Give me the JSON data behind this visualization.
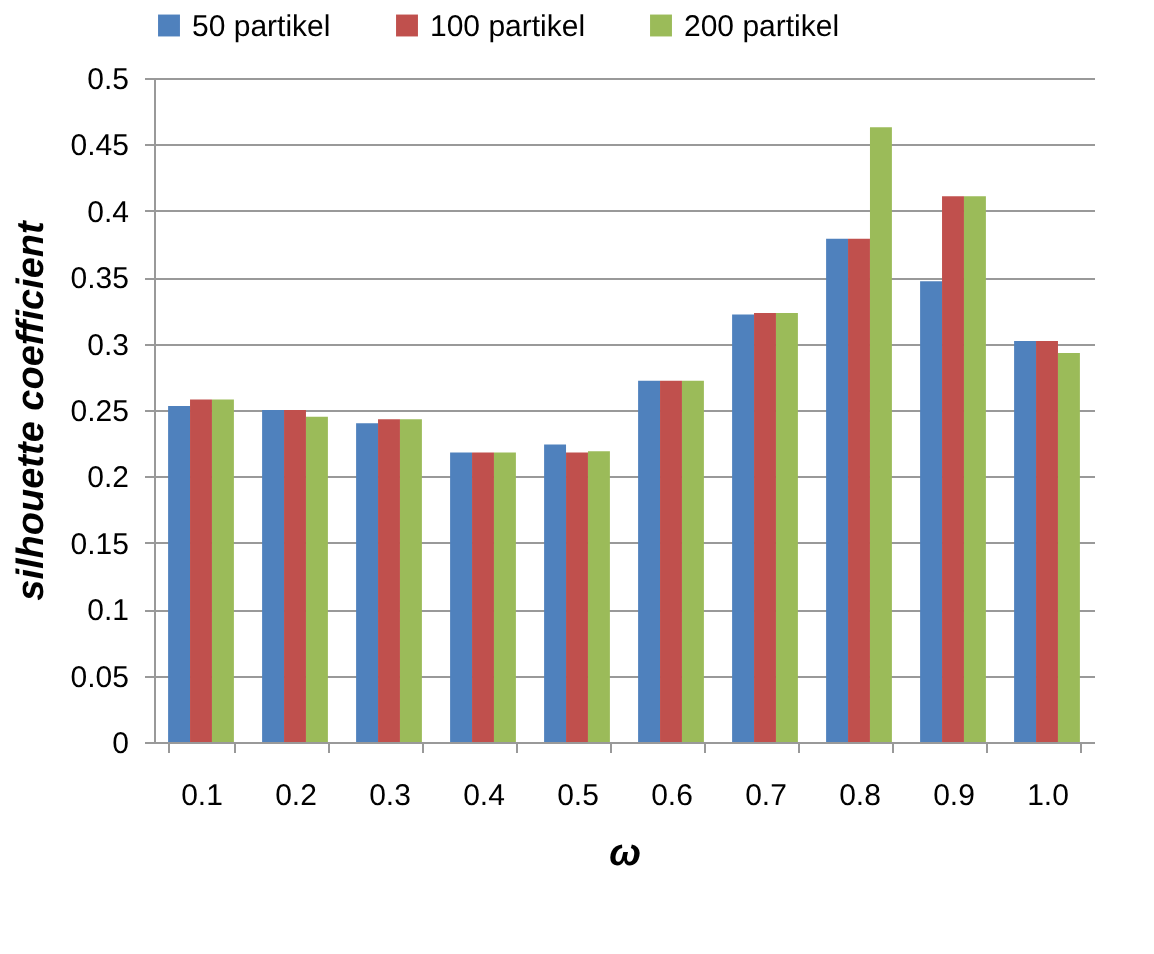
{
  "chart_data": {
    "type": "bar",
    "xlabel": "ω",
    "ylabel": "silhouette coefficient",
    "categories": [
      "0.1",
      "0.2",
      "0.3",
      "0.4",
      "0.5",
      "0.6",
      "0.7",
      "0.8",
      "0.9",
      "1.0"
    ],
    "series": [
      {
        "name": "50 partikel",
        "color": "#4f81bd",
        "values": [
          0.253,
          0.25,
          0.24,
          0.218,
          0.224,
          0.272,
          0.322,
          0.379,
          0.347,
          0.302
        ]
      },
      {
        "name": "100 partikel",
        "color": "#c0504d",
        "values": [
          0.258,
          0.25,
          0.243,
          0.218,
          0.218,
          0.272,
          0.323,
          0.379,
          0.411,
          0.302
        ]
      },
      {
        "name": "200 partikel",
        "color": "#9bbb59",
        "values": [
          0.258,
          0.245,
          0.243,
          0.218,
          0.219,
          0.272,
          0.323,
          0.463,
          0.411,
          0.293
        ]
      }
    ],
    "ylim": [
      0,
      0.5
    ],
    "yticks": [
      0,
      0.05,
      0.1,
      0.15,
      0.2,
      0.25,
      0.3,
      0.35,
      0.4,
      0.45,
      0.5
    ],
    "grid": "y",
    "legend": "top"
  }
}
